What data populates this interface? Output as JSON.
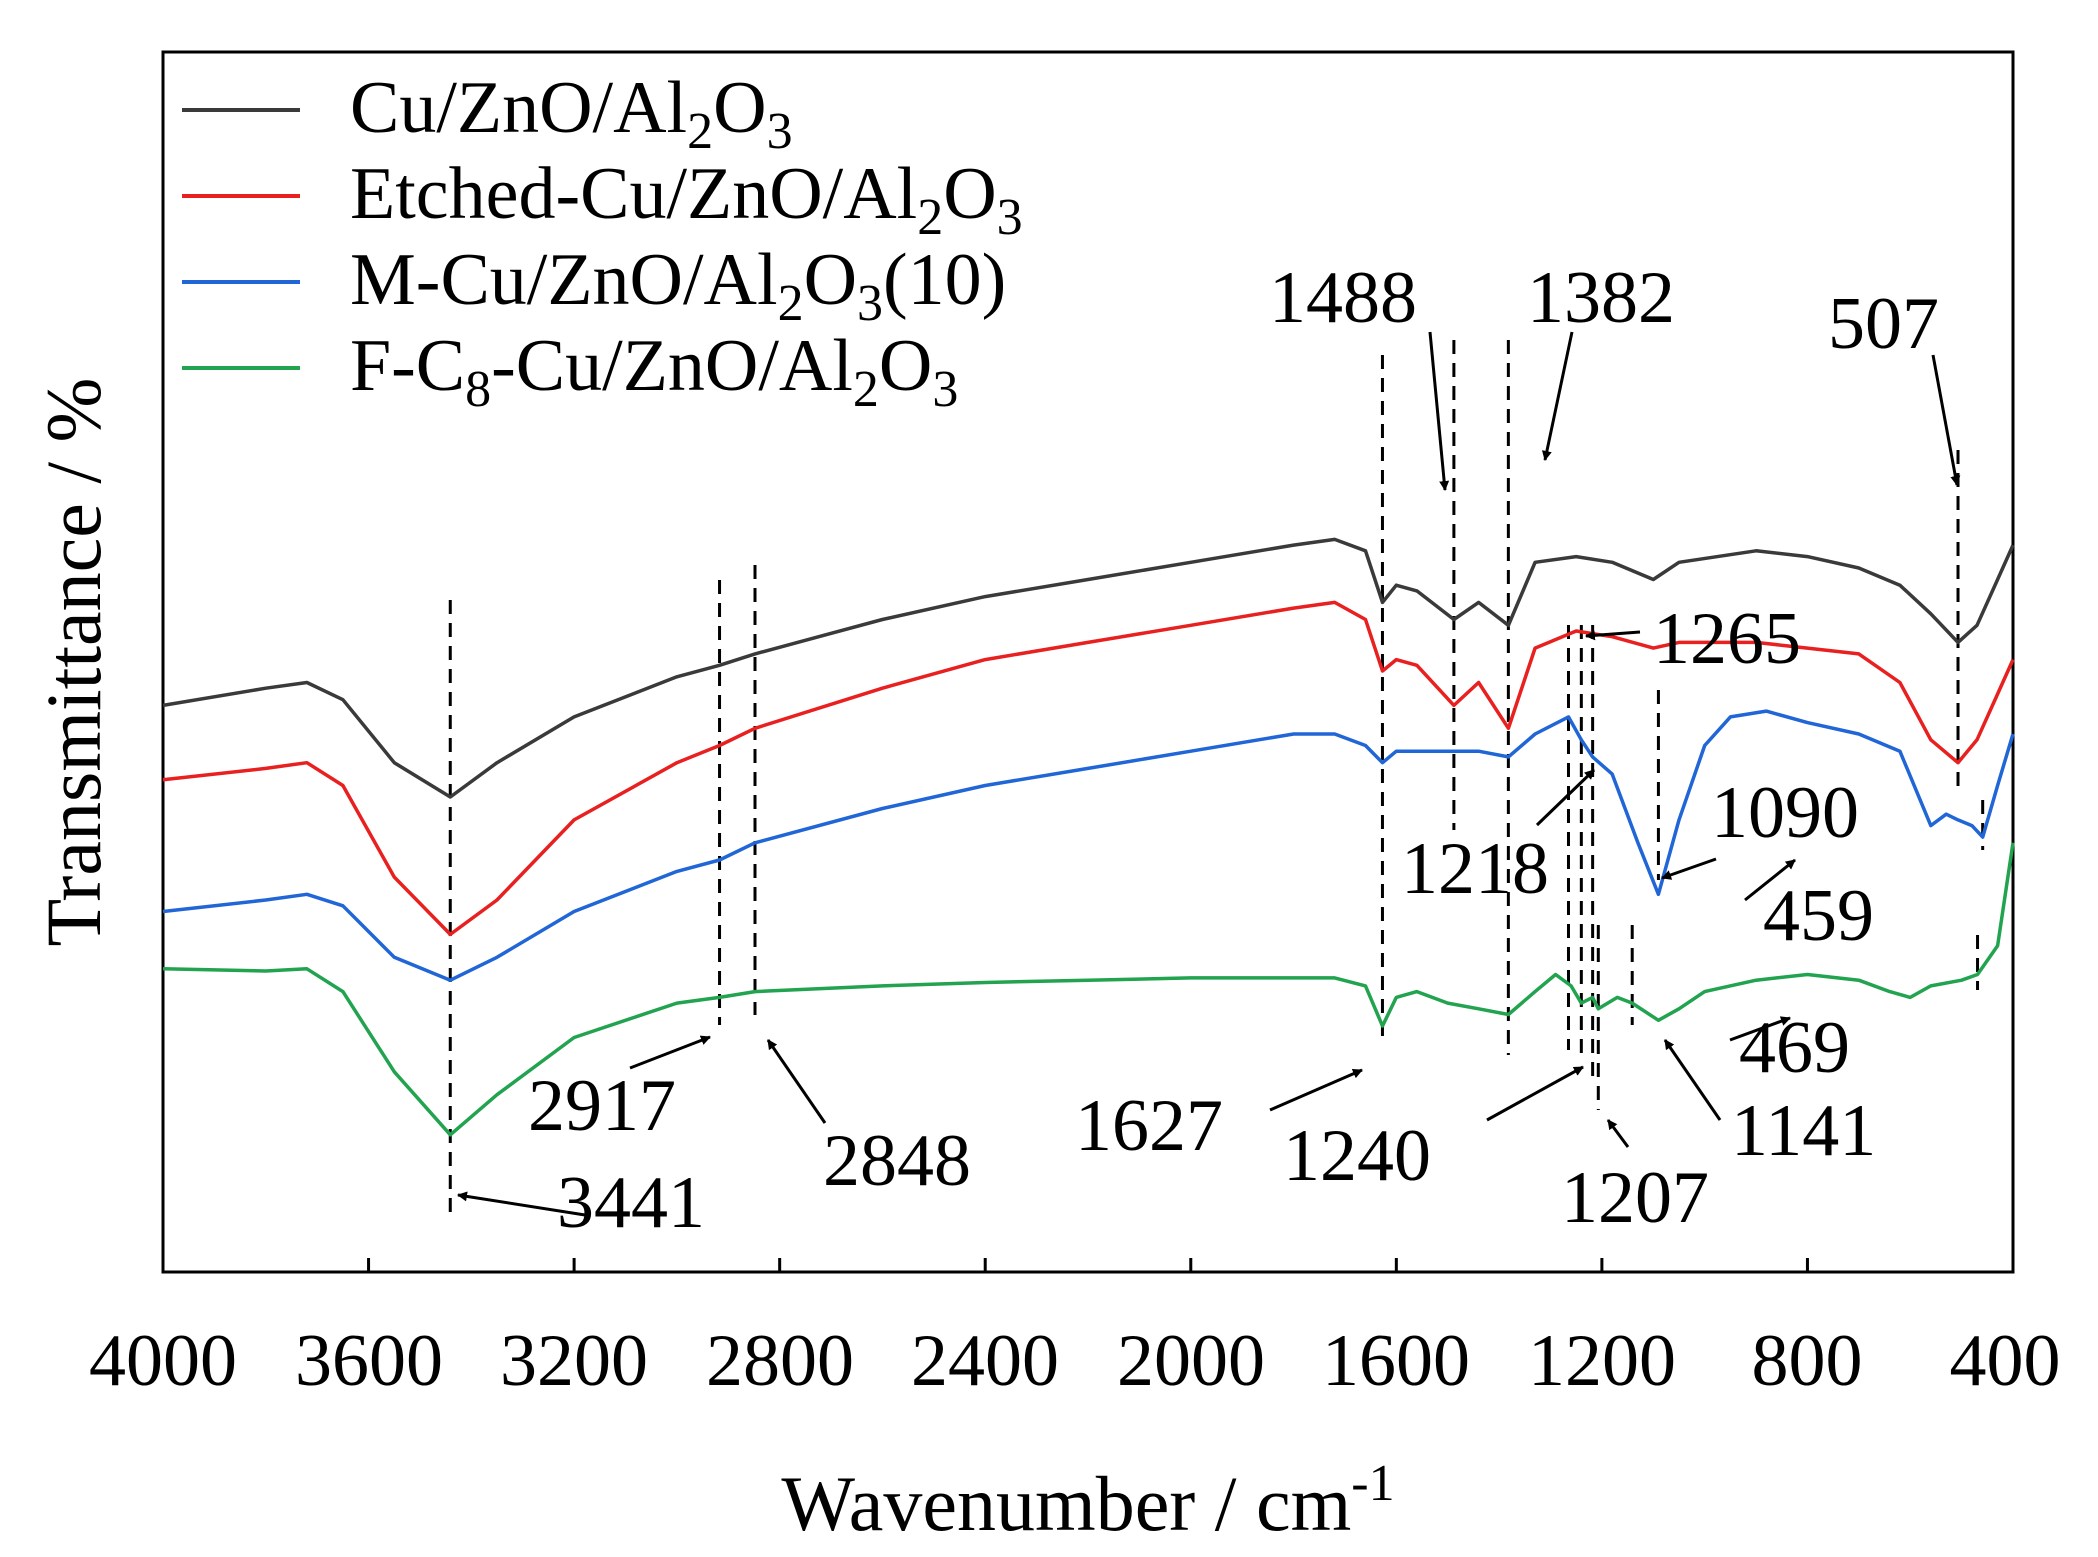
{
  "chart_data": {
    "type": "line",
    "title": "",
    "xlabel": "Wavenumber / cm",
    "xlabel_sup": "-1",
    "ylabel": "Transmittance / %",
    "xlim": [
      4000,
      400
    ],
    "x_reversed": true,
    "ylim": [
      0,
      100
    ],
    "xticks": [
      4000,
      3600,
      3200,
      2800,
      2400,
      2000,
      1600,
      1200,
      800,
      400
    ],
    "xtick_labels": [
      "4000",
      "3600",
      "3200",
      "2800",
      "2400",
      "2000",
      "1600",
      "1200",
      "800",
      "400"
    ],
    "legend_position": "top-left",
    "series": [
      {
        "name": "Cu/ZnO/Al2O3",
        "legend_parts": [
          {
            "t": "Cu/ZnO/Al"
          },
          {
            "t": "2",
            "sub": true
          },
          {
            "t": "O"
          },
          {
            "t": "3",
            "sub": true
          }
        ],
        "color": "#3a3a3a",
        "points": [
          [
            4000,
            48
          ],
          [
            3800,
            49.5
          ],
          [
            3720,
            50
          ],
          [
            3650,
            48.5
          ],
          [
            3550,
            43
          ],
          [
            3441,
            40
          ],
          [
            3350,
            43
          ],
          [
            3200,
            47
          ],
          [
            3000,
            50.5
          ],
          [
            2917,
            51.5
          ],
          [
            2848,
            52.5
          ],
          [
            2600,
            55.5
          ],
          [
            2400,
            57.5
          ],
          [
            2200,
            59
          ],
          [
            2000,
            60.5
          ],
          [
            1800,
            62
          ],
          [
            1720,
            62.5
          ],
          [
            1660,
            61.5
          ],
          [
            1627,
            57
          ],
          [
            1600,
            58.5
          ],
          [
            1560,
            58
          ],
          [
            1488,
            55.5
          ],
          [
            1440,
            57
          ],
          [
            1382,
            55
          ],
          [
            1330,
            60.5
          ],
          [
            1250,
            61
          ],
          [
            1180,
            60.5
          ],
          [
            1100,
            59
          ],
          [
            1050,
            60.5
          ],
          [
            900,
            61.5
          ],
          [
            800,
            61
          ],
          [
            700,
            60
          ],
          [
            620,
            58.5
          ],
          [
            560,
            56
          ],
          [
            507,
            53.5
          ],
          [
            470,
            55
          ],
          [
            430,
            59
          ],
          [
            400,
            62
          ]
        ]
      },
      {
        "name": "Etched-Cu/ZnO/Al2O3",
        "legend_parts": [
          {
            "t": "Etched-Cu/ZnO/Al"
          },
          {
            "t": "2",
            "sub": true
          },
          {
            "t": "O"
          },
          {
            "t": "3",
            "sub": true
          }
        ],
        "color": "#e8201f",
        "points": [
          [
            4000,
            41.5
          ],
          [
            3800,
            42.5
          ],
          [
            3720,
            43
          ],
          [
            3650,
            41
          ],
          [
            3550,
            33
          ],
          [
            3441,
            28
          ],
          [
            3350,
            31
          ],
          [
            3200,
            38
          ],
          [
            3000,
            43
          ],
          [
            2917,
            44.5
          ],
          [
            2848,
            46
          ],
          [
            2600,
            49.5
          ],
          [
            2400,
            52
          ],
          [
            2200,
            53.5
          ],
          [
            2000,
            55
          ],
          [
            1800,
            56.5
          ],
          [
            1720,
            57
          ],
          [
            1660,
            55.5
          ],
          [
            1627,
            51
          ],
          [
            1600,
            52
          ],
          [
            1560,
            51.5
          ],
          [
            1488,
            48
          ],
          [
            1440,
            50
          ],
          [
            1382,
            46
          ],
          [
            1330,
            53
          ],
          [
            1250,
            54.5
          ],
          [
            1180,
            54
          ],
          [
            1100,
            53
          ],
          [
            1050,
            53.5
          ],
          [
            900,
            53.5
          ],
          [
            800,
            53
          ],
          [
            700,
            52.5
          ],
          [
            620,
            50
          ],
          [
            560,
            45
          ],
          [
            507,
            43
          ],
          [
            470,
            45
          ],
          [
            430,
            49
          ],
          [
            400,
            52
          ]
        ]
      },
      {
        "name": "M-Cu/ZnO/Al2O3(10)",
        "legend_parts": [
          {
            "t": "M-Cu/ZnO/Al"
          },
          {
            "t": "2",
            "sub": true
          },
          {
            "t": "O"
          },
          {
            "t": "3",
            "sub": true
          },
          {
            "t": "(10)"
          }
        ],
        "color": "#2166d6",
        "points": [
          [
            4000,
            30
          ],
          [
            3800,
            31
          ],
          [
            3720,
            31.5
          ],
          [
            3650,
            30.5
          ],
          [
            3550,
            26
          ],
          [
            3441,
            24
          ],
          [
            3350,
            26
          ],
          [
            3200,
            30
          ],
          [
            3000,
            33.5
          ],
          [
            2917,
            34.5
          ],
          [
            2848,
            36
          ],
          [
            2600,
            39
          ],
          [
            2400,
            41
          ],
          [
            2200,
            42.5
          ],
          [
            2000,
            44
          ],
          [
            1800,
            45.5
          ],
          [
            1720,
            45.5
          ],
          [
            1660,
            44.5
          ],
          [
            1627,
            43
          ],
          [
            1600,
            44
          ],
          [
            1560,
            44
          ],
          [
            1500,
            44
          ],
          [
            1440,
            44
          ],
          [
            1382,
            43.5
          ],
          [
            1330,
            45.5
          ],
          [
            1265,
            47
          ],
          [
            1240,
            45
          ],
          [
            1218,
            43.5
          ],
          [
            1180,
            42
          ],
          [
            1130,
            36
          ],
          [
            1090,
            31.5
          ],
          [
            1050,
            38
          ],
          [
            1000,
            44.5
          ],
          [
            950,
            47
          ],
          [
            880,
            47.5
          ],
          [
            800,
            46.5
          ],
          [
            700,
            45.5
          ],
          [
            620,
            44
          ],
          [
            560,
            37.5
          ],
          [
            530,
            38.5
          ],
          [
            507,
            38
          ],
          [
            480,
            37.5
          ],
          [
            459,
            36.5
          ],
          [
            430,
            41
          ],
          [
            400,
            45.5
          ]
        ]
      },
      {
        "name": "F-C8-Cu/ZnO/Al2O3",
        "legend_parts": [
          {
            "t": "F-C"
          },
          {
            "t": "8",
            "sub": true
          },
          {
            "t": "-Cu/ZnO/Al"
          },
          {
            "t": "2",
            "sub": true
          },
          {
            "t": "O"
          },
          {
            "t": "3",
            "sub": true
          }
        ],
        "color": "#22a34f",
        "points": [
          [
            4000,
            25
          ],
          [
            3800,
            24.8
          ],
          [
            3720,
            25
          ],
          [
            3650,
            23
          ],
          [
            3550,
            16
          ],
          [
            3441,
            10.5
          ],
          [
            3350,
            14
          ],
          [
            3200,
            19
          ],
          [
            3000,
            22
          ],
          [
            2917,
            22.5
          ],
          [
            2848,
            23
          ],
          [
            2600,
            23.5
          ],
          [
            2400,
            23.8
          ],
          [
            2200,
            24
          ],
          [
            2000,
            24.2
          ],
          [
            1800,
            24.2
          ],
          [
            1720,
            24.2
          ],
          [
            1660,
            23.5
          ],
          [
            1627,
            20
          ],
          [
            1600,
            22.5
          ],
          [
            1560,
            23
          ],
          [
            1500,
            22
          ],
          [
            1440,
            21.5
          ],
          [
            1382,
            21
          ],
          [
            1330,
            23
          ],
          [
            1290,
            24.5
          ],
          [
            1260,
            23.5
          ],
          [
            1240,
            22
          ],
          [
            1218,
            22.5
          ],
          [
            1207,
            21.5
          ],
          [
            1170,
            22.5
          ],
          [
            1141,
            22
          ],
          [
            1090,
            20.5
          ],
          [
            1050,
            21.5
          ],
          [
            1000,
            23
          ],
          [
            900,
            24
          ],
          [
            800,
            24.5
          ],
          [
            700,
            24
          ],
          [
            640,
            23
          ],
          [
            600,
            22.5
          ],
          [
            560,
            23.5
          ],
          [
            500,
            24
          ],
          [
            469,
            24.5
          ],
          [
            430,
            27
          ],
          [
            400,
            36
          ]
        ]
      }
    ],
    "annotations": [
      {
        "label": "1488",
        "x": 1488
      },
      {
        "label": "1382",
        "x": 1382
      },
      {
        "label": "507",
        "x": 507
      },
      {
        "label": "1265",
        "x": 1265
      },
      {
        "label": "1218",
        "x": 1218
      },
      {
        "label": "1090",
        "x": 1090
      },
      {
        "label": "459",
        "x": 459
      },
      {
        "label": "469",
        "x": 469
      },
      {
        "label": "1141",
        "x": 1141
      },
      {
        "label": "1207",
        "x": 1207
      },
      {
        "label": "1240",
        "x": 1240
      },
      {
        "label": "1627",
        "x": 1627
      },
      {
        "label": "2848",
        "x": 2848
      },
      {
        "label": "2917",
        "x": 2917
      },
      {
        "label": "3441",
        "x": 3441
      }
    ]
  }
}
